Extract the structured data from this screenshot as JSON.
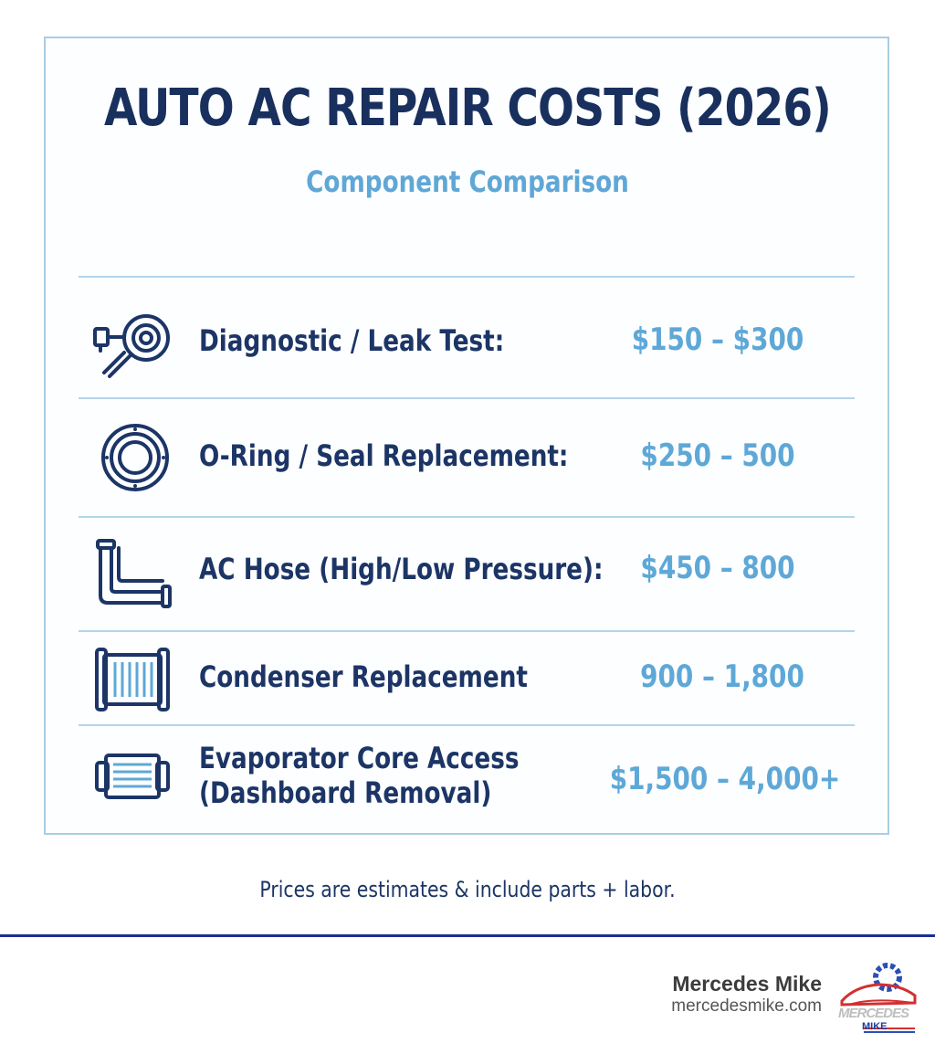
{
  "header": {
    "title": "AUTO AC REPAIR COSTS (2026)",
    "subtitle": "Component Comparison"
  },
  "rows": [
    {
      "icon": "magnifier-gauge-icon",
      "label": "Diagnostic / Leak Test:",
      "price": "$150 – $300"
    },
    {
      "icon": "o-ring-icon",
      "label": "O-Ring / Seal Replacement:",
      "price": "$250 – 500"
    },
    {
      "icon": "hose-icon",
      "label": "AC Hose (High/Low Pressure):",
      "price": "$450 – 800"
    },
    {
      "icon": "condenser-icon",
      "label": "Condenser Replacement",
      "price": "900 – 1,800"
    },
    {
      "icon": "evaporator-icon",
      "label_line1": "Evaporator Core Access",
      "label_line2": "(Dashboard Removal)",
      "price": "$1,500 – 4,000+"
    }
  ],
  "footnote": "Prices are estimates & include parts + labor.",
  "brand": {
    "name": "Mercedes Mike",
    "url": "mercedesmike.com",
    "logo_text": "MERCEDES",
    "logo_sub": "MIKE"
  },
  "colors": {
    "navy": "#1c3566",
    "accent_blue": "#5ea8d7",
    "border": "#a9cde3",
    "footer_line": "#1c2f8f"
  }
}
